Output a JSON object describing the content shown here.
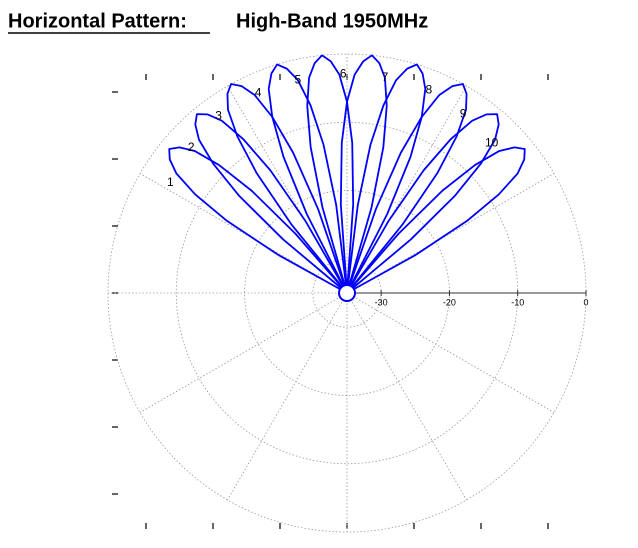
{
  "chart_data": {
    "type": "polar",
    "title": "Horizontal Pattern:",
    "subtitle": "High-Band 1950MHz",
    "rlim": [
      -35,
      0
    ],
    "rticks": [
      -30,
      -20,
      -10,
      0
    ],
    "grid": true,
    "color": "#0000ff",
    "series": [
      {
        "name": "1",
        "theta": [
          -63,
          -61,
          -59,
          -57,
          -55,
          -53,
          -51,
          -49,
          -47,
          -45,
          -43,
          -41,
          -39
        ],
        "values": [
          -35,
          -23.5,
          -14.5,
          -8.5,
          -4.5,
          -2.5,
          -1.5,
          -2.5,
          -4.5,
          -8.5,
          -14.5,
          -23.5,
          -35
        ]
      },
      {
        "name": "2",
        "theta": [
          -52,
          -50,
          -48,
          -46,
          -44,
          -42,
          -40,
          -38,
          -36,
          -34,
          -32,
          -30,
          -28
        ],
        "values": [
          -35,
          -22.8,
          -13.8,
          -7.8,
          -3.8,
          -1.8,
          -0.8,
          -1.8,
          -3.8,
          -7.8,
          -13.8,
          -22.8,
          -35
        ]
      },
      {
        "name": "3",
        "theta": [
          -41,
          -39,
          -37,
          -35,
          -33,
          -31,
          -29,
          -27,
          -25,
          -23,
          -21,
          -19,
          -17
        ],
        "values": [
          -35,
          -22,
          -13,
          -7,
          -3,
          -1,
          0,
          -1,
          -3,
          -7,
          -13,
          -22,
          -35
        ]
      },
      {
        "name": "4",
        "theta": [
          -29,
          -27,
          -25,
          -23,
          -21,
          -19,
          -17,
          -15,
          -13,
          -11,
          -9,
          -7,
          -5
        ],
        "values": [
          -35,
          -22,
          -13,
          -7,
          -3,
          -1,
          0,
          -1,
          -3,
          -7,
          -13,
          -22,
          -35
        ]
      },
      {
        "name": "5",
        "theta": [
          -18,
          -16,
          -14,
          -12,
          -10,
          -8,
          -6,
          -4,
          -2,
          0,
          2,
          4,
          6
        ],
        "values": [
          -35,
          -22,
          -13,
          -7,
          -3,
          -1,
          0,
          -1,
          -3,
          -7,
          -13,
          -22,
          -35
        ]
      },
      {
        "name": "6",
        "theta": [
          -6,
          -4,
          -2,
          0,
          2,
          4,
          6,
          8,
          10,
          12,
          14,
          16,
          18
        ],
        "values": [
          -35,
          -22,
          -13,
          -7,
          -3,
          -1,
          0,
          -1,
          -3,
          -7,
          -13,
          -22,
          -35
        ]
      },
      {
        "name": "7",
        "theta": [
          5,
          7,
          9,
          11,
          13,
          15,
          17,
          19,
          21,
          23,
          25,
          27,
          29
        ],
        "values": [
          -35,
          -22,
          -13,
          -7,
          -3,
          -1,
          0,
          -1,
          -3,
          -7,
          -13,
          -22,
          -35
        ]
      },
      {
        "name": "8",
        "theta": [
          17,
          19,
          21,
          23,
          25,
          27,
          29,
          31,
          33,
          35,
          37,
          39,
          41
        ],
        "values": [
          -35,
          -22,
          -13,
          -7,
          -3,
          -1,
          0,
          -1,
          -3,
          -7,
          -13,
          -22,
          -35
        ]
      },
      {
        "name": "9",
        "theta": [
          28,
          30,
          32,
          34,
          36,
          38,
          40,
          42,
          44,
          46,
          48,
          50,
          52
        ],
        "values": [
          -35,
          -22.8,
          -13.8,
          -7.8,
          -3.8,
          -1.8,
          -0.8,
          -1.8,
          -3.8,
          -7.8,
          -13.8,
          -22.8,
          -35
        ]
      },
      {
        "name": "10",
        "theta": [
          39,
          41,
          43,
          45,
          47,
          49,
          51,
          53,
          55,
          57,
          59,
          61,
          63
        ],
        "values": [
          -35,
          -23.5,
          -14.5,
          -8.5,
          -4.5,
          -2.5,
          -1.5,
          -2.5,
          -4.5,
          -8.5,
          -14.5,
          -23.5,
          -35
        ]
      }
    ]
  }
}
